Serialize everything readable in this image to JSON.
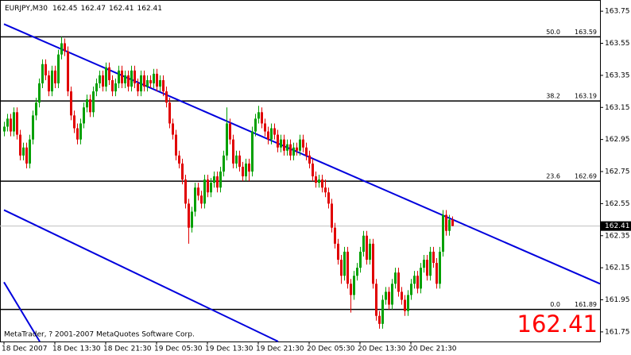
{
  "chart_data": {
    "type": "candlestick",
    "symbol": "EURJPY,M30",
    "footer": "MetaTrader, ? 2001-2007 MetaQuotes Software Corp.",
    "categories": [
      "18 Dec 2007",
      null,
      null,
      null,
      null,
      null,
      null,
      null,
      null,
      null,
      null,
      null,
      null,
      null,
      null,
      null,
      "18 Dec 13:30",
      null,
      null,
      null,
      null,
      null,
      null,
      null,
      null,
      null,
      null,
      null,
      null,
      null,
      null,
      null,
      "18 Dec 21:30",
      null,
      null,
      null,
      null,
      null,
      null,
      null,
      null,
      null,
      null,
      null,
      null,
      null,
      null,
      null,
      "19 Dec 05:30",
      null,
      null,
      null,
      null,
      null,
      null,
      null,
      null,
      null,
      null,
      null,
      null,
      null,
      null,
      null,
      "19 Dec 13:30",
      null,
      null,
      null,
      null,
      null,
      null,
      null,
      null,
      null,
      null,
      null,
      null,
      null,
      null,
      null,
      "19 Dec 21:30",
      null,
      null,
      null,
      null,
      null,
      null,
      null,
      null,
      null,
      null,
      null,
      null,
      null,
      null,
      null,
      "20 Dec 05:30",
      null,
      null,
      null,
      null,
      null,
      null,
      null,
      null,
      null,
      null,
      null,
      null,
      null,
      null,
      null,
      "20 Dec 13:30",
      null,
      null,
      null,
      null,
      null,
      null,
      null,
      null,
      null,
      null,
      null,
      null,
      null,
      null,
      null,
      "20 Dec 21:30",
      null,
      null,
      null,
      null,
      null,
      null,
      null,
      null,
      null,
      null,
      null,
      null,
      null
    ],
    "ohlc": [
      [
        163.0,
        163.06,
        162.97,
        163.03
      ],
      [
        163.03,
        163.11,
        163.0,
        163.08
      ],
      [
        163.08,
        163.11,
        162.97,
        163.0
      ],
      [
        163.0,
        163.15,
        162.97,
        163.12
      ],
      [
        163.12,
        163.15,
        162.95,
        162.98
      ],
      [
        162.98,
        163.01,
        162.82,
        162.85
      ],
      [
        162.85,
        162.93,
        162.82,
        162.9
      ],
      [
        162.9,
        162.93,
        162.77,
        162.8
      ],
      [
        162.8,
        162.98,
        162.77,
        162.95
      ],
      [
        162.95,
        163.13,
        162.92,
        163.1
      ],
      [
        163.1,
        163.21,
        163.07,
        163.18
      ],
      [
        163.18,
        163.33,
        163.15,
        163.3
      ],
      [
        163.3,
        163.45,
        163.27,
        163.42
      ],
      [
        163.42,
        163.45,
        163.32,
        163.35
      ],
      [
        163.35,
        163.38,
        163.22,
        163.25
      ],
      [
        163.25,
        163.41,
        163.22,
        163.38
      ],
      [
        163.38,
        163.41,
        163.27,
        163.3
      ],
      [
        163.3,
        163.51,
        163.27,
        163.48
      ],
      [
        163.48,
        163.59,
        163.45,
        163.55
      ],
      [
        163.55,
        163.58,
        163.47,
        163.5
      ],
      [
        163.5,
        163.53,
        163.22,
        163.25
      ],
      [
        163.25,
        163.28,
        163.07,
        163.1
      ],
      [
        163.1,
        163.13,
        162.99,
        163.02
      ],
      [
        163.02,
        163.05,
        162.92,
        162.95
      ],
      [
        162.95,
        163.08,
        162.92,
        163.05
      ],
      [
        163.05,
        163.18,
        163.02,
        163.15
      ],
      [
        163.15,
        163.23,
        163.12,
        163.2
      ],
      [
        163.2,
        163.23,
        163.09,
        163.12
      ],
      [
        163.12,
        163.28,
        163.09,
        163.25
      ],
      [
        163.25,
        163.33,
        163.22,
        163.3
      ],
      [
        163.3,
        163.38,
        163.27,
        163.35
      ],
      [
        163.35,
        163.38,
        163.25,
        163.28
      ],
      [
        163.28,
        163.43,
        163.25,
        163.4
      ],
      [
        163.4,
        163.43,
        163.29,
        163.32
      ],
      [
        163.32,
        163.35,
        163.22,
        163.25
      ],
      [
        163.25,
        163.33,
        163.22,
        163.3
      ],
      [
        163.3,
        163.41,
        163.27,
        163.38
      ],
      [
        163.38,
        163.41,
        163.27,
        163.3
      ],
      [
        163.3,
        163.38,
        163.27,
        163.35
      ],
      [
        163.35,
        163.38,
        163.25,
        163.28
      ],
      [
        163.28,
        163.41,
        163.25,
        163.38
      ],
      [
        163.38,
        163.41,
        163.27,
        163.3
      ],
      [
        163.3,
        163.33,
        163.22,
        163.25
      ],
      [
        163.25,
        163.38,
        163.22,
        163.35
      ],
      [
        163.35,
        163.38,
        163.25,
        163.28
      ],
      [
        163.28,
        163.35,
        163.25,
        163.32
      ],
      [
        163.32,
        163.35,
        163.27,
        163.3
      ],
      [
        163.3,
        163.39,
        163.27,
        163.36
      ],
      [
        163.36,
        163.39,
        163.25,
        163.28
      ],
      [
        163.28,
        163.35,
        163.25,
        163.32
      ],
      [
        163.32,
        163.35,
        163.22,
        163.25
      ],
      [
        163.25,
        163.28,
        163.15,
        163.18
      ],
      [
        163.18,
        163.21,
        163.02,
        163.05
      ],
      [
        163.05,
        163.08,
        162.95,
        162.98
      ],
      [
        162.98,
        163.01,
        162.82,
        162.85
      ],
      [
        162.85,
        162.88,
        162.77,
        162.8
      ],
      [
        162.8,
        162.83,
        162.67,
        162.7
      ],
      [
        162.7,
        162.73,
        162.52,
        162.55
      ],
      [
        162.55,
        162.58,
        162.3,
        162.4
      ],
      [
        162.4,
        162.53,
        162.37,
        162.5
      ],
      [
        162.5,
        162.68,
        162.47,
        162.65
      ],
      [
        162.65,
        162.68,
        162.57,
        162.6
      ],
      [
        162.6,
        162.63,
        162.52,
        162.55
      ],
      [
        162.55,
        162.73,
        162.52,
        162.7
      ],
      [
        162.7,
        162.73,
        162.59,
        162.62
      ],
      [
        162.62,
        162.71,
        162.59,
        162.68
      ],
      [
        162.68,
        162.75,
        162.65,
        162.72
      ],
      [
        162.72,
        162.75,
        162.62,
        162.65
      ],
      [
        162.65,
        162.78,
        162.62,
        162.75
      ],
      [
        162.75,
        162.88,
        162.72,
        162.85
      ],
      [
        162.85,
        163.15,
        162.82,
        163.05
      ],
      [
        163.05,
        163.08,
        162.92,
        162.95
      ],
      [
        162.95,
        162.98,
        162.77,
        162.8
      ],
      [
        162.8,
        162.88,
        162.77,
        162.85
      ],
      [
        162.85,
        162.88,
        162.75,
        162.78
      ],
      [
        162.78,
        162.81,
        162.69,
        162.72
      ],
      [
        162.72,
        162.83,
        162.69,
        162.8
      ],
      [
        162.8,
        162.83,
        162.69,
        162.75
      ],
      [
        162.75,
        163.03,
        162.72,
        163.0
      ],
      [
        163.0,
        163.11,
        162.97,
        163.08
      ],
      [
        163.08,
        163.16,
        163.05,
        163.12
      ],
      [
        163.12,
        163.15,
        163.02,
        163.05
      ],
      [
        163.05,
        163.08,
        162.97,
        163.0
      ],
      [
        163.0,
        163.03,
        162.92,
        162.95
      ],
      [
        162.95,
        163.05,
        162.92,
        163.02
      ],
      [
        163.02,
        163.05,
        162.95,
        162.98
      ],
      [
        162.98,
        163.01,
        162.87,
        162.9
      ],
      [
        162.9,
        162.98,
        162.87,
        162.95
      ],
      [
        162.95,
        162.98,
        162.85,
        162.88
      ],
      [
        162.88,
        162.95,
        162.85,
        162.92
      ],
      [
        162.92,
        162.95,
        162.82,
        162.85
      ],
      [
        162.85,
        162.93,
        162.82,
        162.9
      ],
      [
        162.9,
        162.93,
        162.85,
        162.88
      ],
      [
        162.88,
        162.98,
        162.85,
        162.95
      ],
      [
        162.95,
        162.98,
        162.87,
        162.9
      ],
      [
        162.9,
        162.93,
        162.82,
        162.85
      ],
      [
        162.85,
        162.88,
        162.77,
        162.8
      ],
      [
        162.8,
        162.83,
        162.69,
        162.72
      ],
      [
        162.72,
        162.75,
        162.65,
        162.68
      ],
      [
        162.68,
        162.73,
        162.65,
        162.7
      ],
      [
        162.7,
        162.73,
        162.62,
        162.65
      ],
      [
        162.65,
        162.7,
        162.59,
        162.62
      ],
      [
        162.62,
        162.65,
        162.52,
        162.55
      ],
      [
        162.55,
        162.58,
        162.37,
        162.4
      ],
      [
        162.4,
        162.43,
        162.27,
        162.3
      ],
      [
        162.3,
        162.33,
        162.17,
        162.2
      ],
      [
        162.2,
        162.23,
        162.05,
        162.1
      ],
      [
        162.1,
        162.28,
        162.07,
        162.25
      ],
      [
        162.25,
        162.28,
        162.02,
        162.05
      ],
      [
        162.05,
        162.08,
        161.87,
        161.98
      ],
      [
        161.98,
        162.13,
        161.95,
        162.1
      ],
      [
        162.1,
        162.18,
        162.07,
        162.15
      ],
      [
        162.15,
        162.28,
        162.12,
        162.25
      ],
      [
        162.25,
        162.38,
        162.22,
        162.35
      ],
      [
        162.35,
        162.38,
        162.17,
        162.2
      ],
      [
        162.2,
        162.33,
        162.17,
        162.3
      ],
      [
        162.3,
        162.33,
        162.02,
        162.05
      ],
      [
        162.05,
        162.08,
        161.82,
        161.85
      ],
      [
        161.85,
        161.88,
        161.77,
        161.8
      ],
      [
        161.8,
        161.98,
        161.77,
        161.95
      ],
      [
        161.95,
        162.03,
        161.92,
        162.0
      ],
      [
        162.0,
        162.03,
        161.89,
        161.92
      ],
      [
        161.92,
        162.08,
        161.89,
        162.05
      ],
      [
        162.05,
        162.15,
        162.02,
        162.12
      ],
      [
        162.12,
        162.15,
        161.97,
        162.0
      ],
      [
        162.0,
        162.03,
        161.92,
        161.95
      ],
      [
        161.95,
        161.98,
        161.85,
        161.88
      ],
      [
        161.88,
        162.01,
        161.85,
        161.98
      ],
      [
        161.98,
        162.08,
        161.95,
        162.05
      ],
      [
        162.05,
        162.13,
        162.02,
        162.1
      ],
      [
        162.1,
        162.13,
        161.99,
        162.02
      ],
      [
        162.02,
        162.18,
        161.99,
        162.15
      ],
      [
        162.15,
        162.23,
        162.12,
        162.2
      ],
      [
        162.2,
        162.23,
        162.07,
        162.1
      ],
      [
        162.1,
        162.28,
        162.07,
        162.25
      ],
      [
        162.25,
        162.28,
        162.15,
        162.18
      ],
      [
        162.18,
        162.21,
        162.02,
        162.05
      ],
      [
        162.05,
        162.28,
        162.02,
        162.25
      ],
      [
        162.25,
        162.51,
        162.22,
        162.48
      ],
      [
        162.48,
        162.51,
        162.35,
        162.38
      ],
      [
        162.38,
        162.48,
        162.35,
        162.45
      ],
      [
        162.45,
        162.47,
        162.41,
        162.41
      ]
    ],
    "up_color": "#00a000",
    "down_color": "#e00000",
    "fib_levels": [
      {
        "level": "50.0",
        "value": 163.59
      },
      {
        "level": "38.2",
        "value": 163.19
      },
      {
        "level": "23.6",
        "value": 162.69
      },
      {
        "level": "0.0",
        "value": 161.89
      }
    ],
    "trendlines": [
      {
        "x": [
          0,
          187.5
        ],
        "y": [
          163.67,
          162.05
        ]
      },
      {
        "x": [
          0,
          86.25
        ],
        "y": [
          162.51,
          161.69
        ]
      },
      {
        "x": [
          0,
          11.25
        ],
        "y": [
          162.06,
          161.69
        ]
      }
    ],
    "trendline_color": "#0000dd",
    "ylim": [
      161.69,
      163.82
    ],
    "yticks": [
      163.75,
      163.55,
      163.35,
      163.15,
      162.95,
      162.75,
      162.55,
      162.35,
      162.15,
      161.95,
      161.75
    ]
  }
}
